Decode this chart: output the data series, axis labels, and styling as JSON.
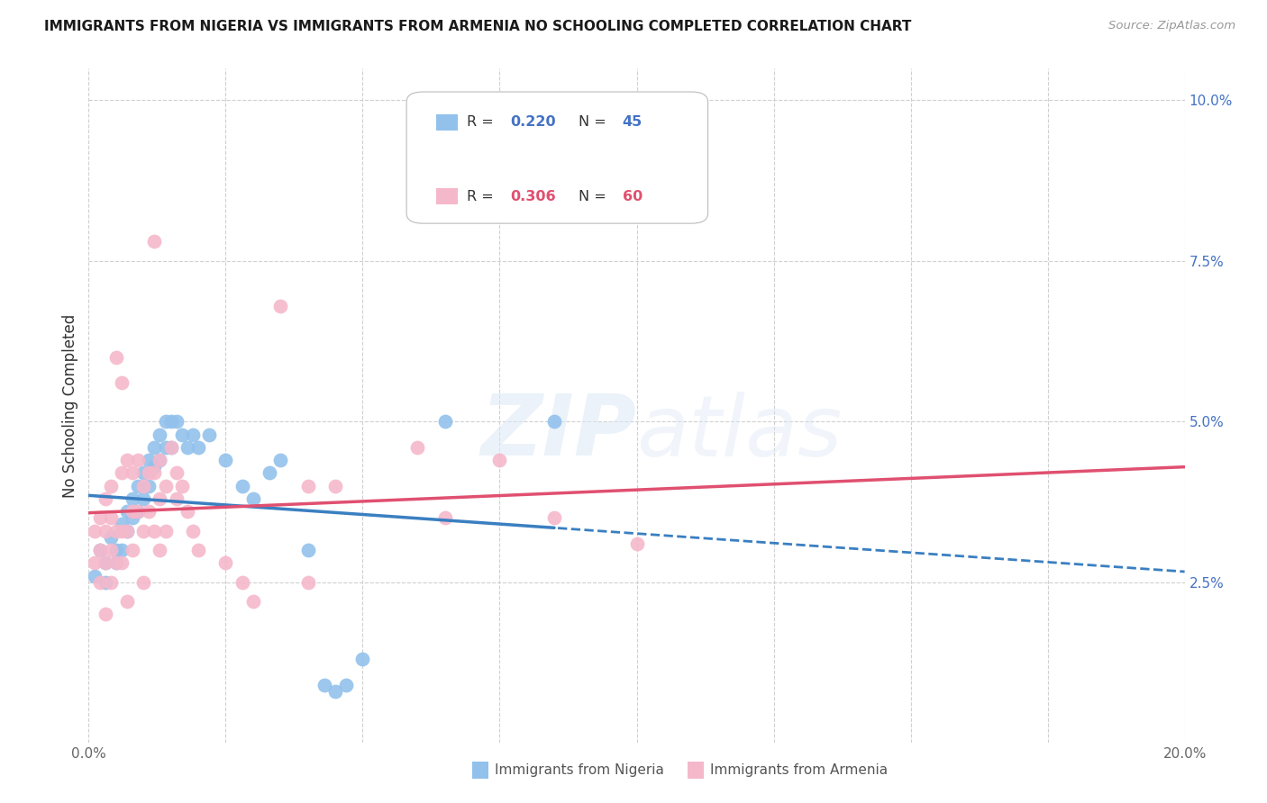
{
  "title": "IMMIGRANTS FROM NIGERIA VS IMMIGRANTS FROM ARMENIA NO SCHOOLING COMPLETED CORRELATION CHART",
  "source": "Source: ZipAtlas.com",
  "ylabel": "No Schooling Completed",
  "xlim": [
    0.0,
    0.2
  ],
  "ylim": [
    0.0,
    0.105
  ],
  "xtick_positions": [
    0.0,
    0.025,
    0.05,
    0.075,
    0.1,
    0.125,
    0.15,
    0.175,
    0.2
  ],
  "xtick_labels": [
    "0.0%",
    "",
    "",
    "",
    "",
    "",
    "",
    "",
    "20.0%"
  ],
  "ytick_positions": [
    0.025,
    0.05,
    0.075,
    0.1
  ],
  "ytick_labels": [
    "2.5%",
    "5.0%",
    "7.5%",
    "10.0%"
  ],
  "grid_color": "#d0d0d0",
  "background_color": "#ffffff",
  "nigeria_color": "#92C1EC",
  "armenia_color": "#F5B8CB",
  "nigeria_line_color": "#3A7FC1",
  "armenia_line_color": "#E05070",
  "nigeria_R": 0.22,
  "nigeria_N": 45,
  "armenia_R": 0.306,
  "armenia_N": 60,
  "legend_label_nigeria": "Immigrants from Nigeria",
  "legend_label_armenia": "Immigrants from Armenia",
  "nigeria_points": [
    [
      0.001,
      0.026
    ],
    [
      0.002,
      0.03
    ],
    [
      0.003,
      0.028
    ],
    [
      0.003,
      0.025
    ],
    [
      0.004,
      0.032
    ],
    [
      0.005,
      0.03
    ],
    [
      0.005,
      0.028
    ],
    [
      0.006,
      0.034
    ],
    [
      0.006,
      0.03
    ],
    [
      0.007,
      0.036
    ],
    [
      0.007,
      0.033
    ],
    [
      0.008,
      0.038
    ],
    [
      0.008,
      0.035
    ],
    [
      0.009,
      0.04
    ],
    [
      0.009,
      0.036
    ],
    [
      0.01,
      0.042
    ],
    [
      0.01,
      0.038
    ],
    [
      0.011,
      0.044
    ],
    [
      0.011,
      0.04
    ],
    [
      0.012,
      0.046
    ],
    [
      0.012,
      0.043
    ],
    [
      0.013,
      0.048
    ],
    [
      0.013,
      0.044
    ],
    [
      0.014,
      0.05
    ],
    [
      0.014,
      0.046
    ],
    [
      0.015,
      0.05
    ],
    [
      0.015,
      0.046
    ],
    [
      0.016,
      0.05
    ],
    [
      0.017,
      0.048
    ],
    [
      0.018,
      0.046
    ],
    [
      0.019,
      0.048
    ],
    [
      0.02,
      0.046
    ],
    [
      0.022,
      0.048
    ],
    [
      0.025,
      0.044
    ],
    [
      0.028,
      0.04
    ],
    [
      0.03,
      0.038
    ],
    [
      0.033,
      0.042
    ],
    [
      0.035,
      0.044
    ],
    [
      0.04,
      0.03
    ],
    [
      0.043,
      0.009
    ],
    [
      0.045,
      0.008
    ],
    [
      0.047,
      0.009
    ],
    [
      0.05,
      0.013
    ],
    [
      0.065,
      0.05
    ],
    [
      0.085,
      0.05
    ]
  ],
  "armenia_points": [
    [
      0.001,
      0.033
    ],
    [
      0.001,
      0.028
    ],
    [
      0.002,
      0.035
    ],
    [
      0.002,
      0.03
    ],
    [
      0.002,
      0.025
    ],
    [
      0.003,
      0.038
    ],
    [
      0.003,
      0.033
    ],
    [
      0.003,
      0.028
    ],
    [
      0.003,
      0.02
    ],
    [
      0.004,
      0.04
    ],
    [
      0.004,
      0.035
    ],
    [
      0.004,
      0.03
    ],
    [
      0.004,
      0.025
    ],
    [
      0.005,
      0.06
    ],
    [
      0.005,
      0.033
    ],
    [
      0.005,
      0.028
    ],
    [
      0.006,
      0.056
    ],
    [
      0.006,
      0.042
    ],
    [
      0.006,
      0.033
    ],
    [
      0.006,
      0.028
    ],
    [
      0.007,
      0.044
    ],
    [
      0.007,
      0.033
    ],
    [
      0.007,
      0.022
    ],
    [
      0.008,
      0.042
    ],
    [
      0.008,
      0.036
    ],
    [
      0.008,
      0.03
    ],
    [
      0.009,
      0.044
    ],
    [
      0.009,
      0.036
    ],
    [
      0.01,
      0.04
    ],
    [
      0.01,
      0.033
    ],
    [
      0.01,
      0.025
    ],
    [
      0.011,
      0.042
    ],
    [
      0.011,
      0.036
    ],
    [
      0.012,
      0.078
    ],
    [
      0.012,
      0.042
    ],
    [
      0.012,
      0.033
    ],
    [
      0.013,
      0.044
    ],
    [
      0.013,
      0.038
    ],
    [
      0.013,
      0.03
    ],
    [
      0.014,
      0.04
    ],
    [
      0.014,
      0.033
    ],
    [
      0.015,
      0.046
    ],
    [
      0.016,
      0.042
    ],
    [
      0.016,
      0.038
    ],
    [
      0.017,
      0.04
    ],
    [
      0.018,
      0.036
    ],
    [
      0.019,
      0.033
    ],
    [
      0.02,
      0.03
    ],
    [
      0.025,
      0.028
    ],
    [
      0.028,
      0.025
    ],
    [
      0.03,
      0.022
    ],
    [
      0.035,
      0.068
    ],
    [
      0.04,
      0.04
    ],
    [
      0.04,
      0.025
    ],
    [
      0.045,
      0.04
    ],
    [
      0.06,
      0.046
    ],
    [
      0.065,
      0.035
    ],
    [
      0.075,
      0.044
    ],
    [
      0.085,
      0.035
    ],
    [
      0.1,
      0.031
    ]
  ]
}
